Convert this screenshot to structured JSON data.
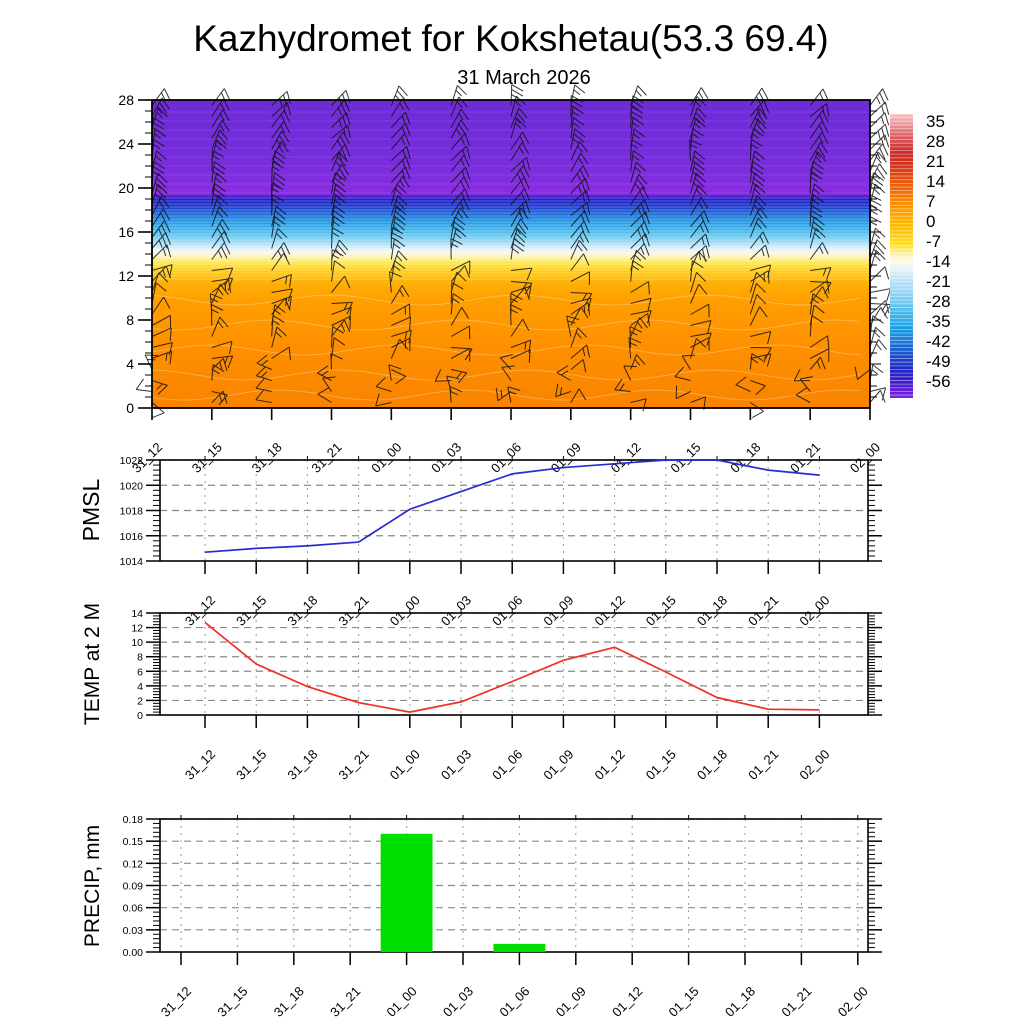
{
  "title": "Kazhydromet for Kokshetau(53.3 69.4)",
  "subtitle": "31 March 2026",
  "time_labels": [
    "31_12",
    "31_15",
    "31_18",
    "31_21",
    "01_00",
    "01_03",
    "01_06",
    "01_09",
    "01_12",
    "01_15",
    "01_18",
    "01_21",
    "02_00"
  ],
  "colorbar": {
    "labels": [
      "35",
      "28",
      "21",
      "14",
      "7",
      "0",
      "-7",
      "-14",
      "-21",
      "-28",
      "-35",
      "-42",
      "-49",
      "-56"
    ],
    "gradient": [
      [
        0,
        "#f5c2c6"
      ],
      [
        0.03,
        "#eda0a4"
      ],
      [
        0.07,
        "#e2696b"
      ],
      [
        0.11,
        "#d53c3e"
      ],
      [
        0.14,
        "#c92b2b"
      ],
      [
        0.18,
        "#d0321c"
      ],
      [
        0.22,
        "#e44a10"
      ],
      [
        0.26,
        "#f26406"
      ],
      [
        0.3,
        "#fa8200"
      ],
      [
        0.34,
        "#ff9c00"
      ],
      [
        0.38,
        "#ffb300"
      ],
      [
        0.42,
        "#ffc900"
      ],
      [
        0.46,
        "#ffdf30"
      ],
      [
        0.49,
        "#fdf0a0"
      ],
      [
        0.52,
        "#fbfce8"
      ],
      [
        0.55,
        "#e2f1fb"
      ],
      [
        0.58,
        "#c2e4f8"
      ],
      [
        0.62,
        "#9ed7f4"
      ],
      [
        0.66,
        "#74c9f1"
      ],
      [
        0.7,
        "#44b9ec"
      ],
      [
        0.74,
        "#22a6e5"
      ],
      [
        0.78,
        "#1b8cdc"
      ],
      [
        0.82,
        "#1c68d4"
      ],
      [
        0.86,
        "#1c44cb"
      ],
      [
        0.9,
        "#1c28c4"
      ],
      [
        0.93,
        "#2f1cc8"
      ],
      [
        0.96,
        "#531dd2"
      ],
      [
        1.0,
        "#7e20e2"
      ]
    ]
  },
  "panels": {
    "upper": {
      "yticks": [
        "0",
        "4",
        "8",
        "12",
        "16",
        "20",
        "24",
        "28"
      ]
    },
    "pmsl": {
      "label": "PMSL",
      "yticks": [
        "1014",
        "1016",
        "1018",
        "1020",
        "1022"
      ]
    },
    "temp": {
      "label": "TEMP at 2 M",
      "yticks": [
        "0",
        "2",
        "4",
        "6",
        "8",
        "10",
        "12",
        "14"
      ]
    },
    "precip": {
      "label": "PRECIP, mm",
      "yticks": [
        "0.00",
        "0.03",
        "0.06",
        "0.09",
        "0.12",
        "0.15",
        "0.18"
      ]
    }
  },
  "colors": {
    "pmsl_line": "#2a2ad0",
    "temp_line": "#f03028",
    "precip_bar": "#00e000",
    "grid_major": "#8a8a8a",
    "grid_minor": "#9a9a9a"
  },
  "chart_data": [
    {
      "type": "heatmap",
      "name": "upper_air_temperature_cross_section",
      "x": [
        "31_12",
        "31_15",
        "31_18",
        "31_21",
        "01_00",
        "01_03",
        "01_06",
        "01_09",
        "01_12",
        "01_15",
        "01_18",
        "01_21",
        "02_00"
      ],
      "ylim": [
        0,
        28
      ],
      "yticks": [
        0,
        4,
        8,
        12,
        16,
        20,
        24,
        28
      ],
      "colorbar_levels": [
        35,
        28,
        21,
        14,
        7,
        0,
        -7,
        -14,
        -21,
        -28,
        -35,
        -42,
        -49,
        -56
      ],
      "temperature_profile_estimate": {
        "heights": [
          0,
          4,
          8,
          10,
          11,
          12,
          13,
          14,
          15,
          16,
          17,
          18,
          19,
          20,
          24,
          28
        ],
        "values": [
          10,
          9,
          6,
          2,
          0,
          -10,
          -18,
          -22,
          -28,
          -33,
          -40,
          -47,
          -54,
          -57,
          -58,
          -58
        ]
      },
      "wind_barbs": {
        "columns": 13,
        "rows": 28
      },
      "gradient": [
        [
          0,
          "#6e2bd8"
        ],
        [
          0.1,
          "#722cda"
        ],
        [
          0.2,
          "#782ddc"
        ],
        [
          0.27,
          "#822ee0"
        ],
        [
          0.305,
          "#8c2ce2"
        ],
        [
          0.315,
          "#3b20cc"
        ],
        [
          0.325,
          "#2320c8"
        ],
        [
          0.345,
          "#1e3cd0"
        ],
        [
          0.365,
          "#1e64d8"
        ],
        [
          0.39,
          "#2392e2"
        ],
        [
          0.42,
          "#42b5ec"
        ],
        [
          0.445,
          "#73ccf1"
        ],
        [
          0.465,
          "#aadff6"
        ],
        [
          0.482,
          "#dff0fb"
        ],
        [
          0.495,
          "#f8f8ea"
        ],
        [
          0.51,
          "#fdf3b0"
        ],
        [
          0.53,
          "#ffe64a"
        ],
        [
          0.56,
          "#ffc815"
        ],
        [
          0.6,
          "#ffad05"
        ],
        [
          0.66,
          "#ff9d01"
        ],
        [
          0.8,
          "#fe9000"
        ],
        [
          1.0,
          "#f98300"
        ]
      ]
    },
    {
      "type": "line",
      "name": "pmsl",
      "title": "PMSL",
      "x": [
        "31_12",
        "31_15",
        "31_18",
        "31_21",
        "01_00",
        "01_03",
        "01_06",
        "01_09",
        "01_12",
        "01_15",
        "01_18",
        "01_21",
        "02_00"
      ],
      "values": [
        1014.7,
        1015.0,
        1015.2,
        1015.5,
        1018.1,
        1019.5,
        1020.9,
        1021.4,
        1021.7,
        1022.0,
        1022.0,
        1021.2,
        1020.8
      ],
      "ylim": [
        1014,
        1022
      ],
      "yticks": [
        1014,
        1016,
        1018,
        1020,
        1022
      ],
      "grid": true
    },
    {
      "type": "line",
      "name": "temp_at_2m",
      "title": "TEMP at 2 M",
      "x": [
        "31_12",
        "31_15",
        "31_18",
        "31_21",
        "01_00",
        "01_03",
        "01_06",
        "01_09",
        "01_12",
        "01_15",
        "01_18",
        "01_21",
        "02_00"
      ],
      "values": [
        12.7,
        7.0,
        3.9,
        1.7,
        0.4,
        1.8,
        4.6,
        7.5,
        9.3,
        5.9,
        2.4,
        0.8,
        0.7
      ],
      "ylim": [
        0,
        14
      ],
      "yticks": [
        0,
        2,
        4,
        6,
        8,
        10,
        12,
        14
      ],
      "grid": true
    },
    {
      "type": "bar",
      "name": "precip",
      "title": "PRECIP, mm",
      "x": [
        "31_12",
        "31_15",
        "31_18",
        "31_21",
        "01_00",
        "01_03",
        "01_06",
        "01_09",
        "01_12",
        "01_15",
        "01_18",
        "01_21",
        "02_00"
      ],
      "values": [
        0,
        0,
        0,
        0,
        0.16,
        0,
        0.011,
        0,
        0,
        0,
        0,
        0,
        0
      ],
      "ylim": [
        0,
        0.18
      ],
      "yticks": [
        0,
        0.03,
        0.06,
        0.09,
        0.12,
        0.15,
        0.18
      ],
      "grid": true
    }
  ]
}
